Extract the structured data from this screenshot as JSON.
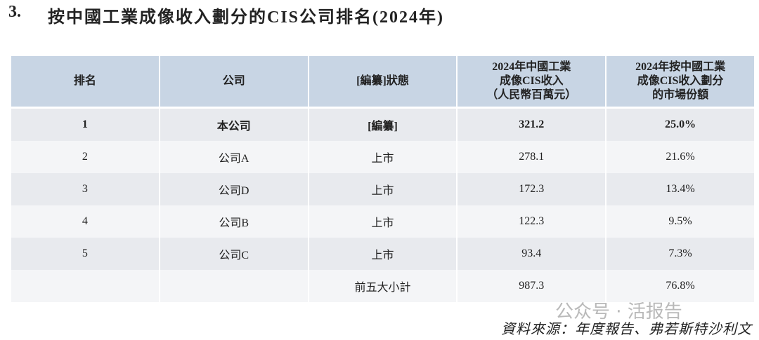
{
  "heading": {
    "number": "3.",
    "title": "按中國工業成像收入劃分的CIS公司排名(2024年)"
  },
  "table": {
    "header": [
      [
        "排名"
      ],
      [
        "公司"
      ],
      [
        "[編纂]狀態"
      ],
      [
        "2024年中國工業",
        "成像CIS收入",
        "（人民幣百萬元）"
      ],
      [
        "2024年按中國工業",
        "成像CIS收入劃分",
        "的市場份額"
      ]
    ],
    "rows": [
      [
        "1",
        "本公司",
        "[編纂]",
        "321.2",
        "25.0%"
      ],
      [
        "2",
        "公司A",
        "上市",
        "278.1",
        "21.6%"
      ],
      [
        "3",
        "公司D",
        "上市",
        "172.3",
        "13.4%"
      ],
      [
        "4",
        "公司B",
        "上市",
        "122.3",
        "9.5%"
      ],
      [
        "5",
        "公司C",
        "上市",
        "93.4",
        "7.3%"
      ]
    ],
    "total": {
      "label": "前五大小計",
      "revenue": "987.3",
      "share": "76.8%"
    }
  },
  "watermark": "公众号 · 活报告",
  "source": "資料來源：年度報告、弗若斯特沙利文"
}
